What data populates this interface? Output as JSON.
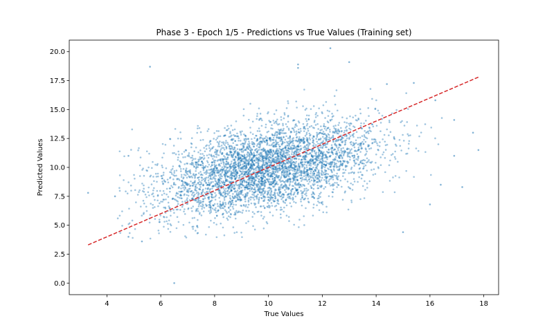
{
  "chart_data": {
    "type": "scatter",
    "title": "Phase 3 - Epoch 1/5 - Predictions vs True Values (Training set)",
    "xlabel": "True Values",
    "ylabel": "Predicted Values",
    "xlim": [
      2.6,
      18.55
    ],
    "ylim": [
      -1.0,
      21.0
    ],
    "xticks": [
      4,
      6,
      8,
      10,
      12,
      14,
      16,
      18
    ],
    "yticks": [
      0.0,
      2.5,
      5.0,
      7.5,
      10.0,
      12.5,
      15.0,
      17.5,
      20.0
    ],
    "xtick_labels": [
      "4",
      "6",
      "8",
      "10",
      "12",
      "14",
      "16",
      "18"
    ],
    "ytick_labels": [
      "0.0",
      "2.5",
      "5.0",
      "7.5",
      "10.0",
      "12.5",
      "15.0",
      "17.5",
      "20.0"
    ],
    "grid": false,
    "point_color": "#1f77b4",
    "reference_line": {
      "x": [
        3.3,
        17.8
      ],
      "y": [
        3.3,
        17.8
      ],
      "color": "#d62728",
      "style": "dashed"
    },
    "cloud": {
      "n": 4200,
      "x_mean": 10.0,
      "x_std": 2.0,
      "y_intercept": 5.6,
      "y_slope": 0.44,
      "y_noise_std": 1.85
    },
    "points": [
      {
        "x": 3.3,
        "y": 7.8
      },
      {
        "x": 5.6,
        "y": 18.7
      },
      {
        "x": 6.5,
        "y": 0.0
      },
      {
        "x": 12.3,
        "y": 20.3
      },
      {
        "x": 11.1,
        "y": 18.9
      },
      {
        "x": 11.1,
        "y": 18.6
      },
      {
        "x": 13.0,
        "y": 19.1
      },
      {
        "x": 17.8,
        "y": 11.5
      },
      {
        "x": 17.6,
        "y": 13.0
      },
      {
        "x": 16.9,
        "y": 14.1
      },
      {
        "x": 16.2,
        "y": 15.8
      },
      {
        "x": 15.4,
        "y": 17.3
      },
      {
        "x": 14.4,
        "y": 17.2
      },
      {
        "x": 16.0,
        "y": 6.8
      },
      {
        "x": 17.2,
        "y": 8.3
      },
      {
        "x": 16.4,
        "y": 8.5
      },
      {
        "x": 4.3,
        "y": 7.5
      },
      {
        "x": 4.8,
        "y": 11.0
      },
      {
        "x": 4.8,
        "y": 4.0
      },
      {
        "x": 5.3,
        "y": 3.6
      },
      {
        "x": 15.0,
        "y": 4.4
      },
      {
        "x": 16.9,
        "y": 11.0
      }
    ]
  }
}
